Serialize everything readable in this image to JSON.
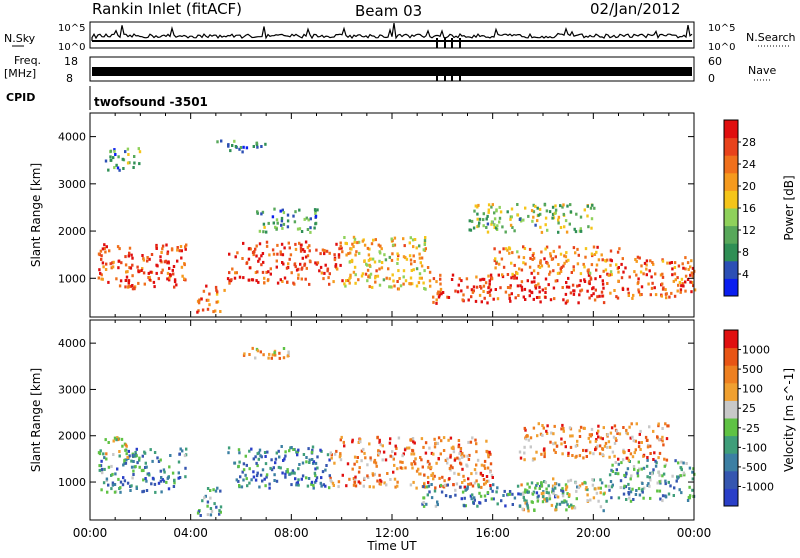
{
  "header": {
    "station": "Rankin Inlet (fitACF)",
    "beam": "Beam 03",
    "date": "02/Jan/2012"
  },
  "summary": {
    "nsky_label": "N.Sky",
    "nsearch_label": "N.Search",
    "nsky_ticks": [
      "10^5",
      "10^0"
    ],
    "nsearch_ticks": [
      "10^5",
      "10^0"
    ],
    "freq_label": "Freq.",
    "freq_unit": "[MHz]",
    "freq_ticks": [
      "18",
      "8"
    ],
    "nave_label": "Nave",
    "nave_ticks": [
      "60",
      "0"
    ],
    "cpid_label": "CPID",
    "cpid_value": "twofsound -3501"
  },
  "colors": {
    "power": [
      "#0a1ef0",
      "#2c4fb5",
      "#2f8f55",
      "#58a85a",
      "#8fd15b",
      "#f5c51a",
      "#f59a1e",
      "#f0701c",
      "#e8421b",
      "#e00e0e"
    ],
    "velocity": [
      "#2a3fc8",
      "#3556b0",
      "#3c7fa3",
      "#3f9e7a",
      "#5fc244",
      "#c8c8c8",
      "#f0a030",
      "#ee8020",
      "#e85515",
      "#e01010"
    ]
  },
  "chart_data": [
    {
      "type": "heatmap",
      "name": "power",
      "xlabel": "Time UT",
      "ylabel": "Slant Range [km]",
      "xlim": [
        0,
        24
      ],
      "ylim": [
        180,
        4500
      ],
      "xticks": [
        "00:00",
        "04:00",
        "08:00",
        "12:00",
        "16:00",
        "20:00",
        "00:00"
      ],
      "yticks": [
        1000,
        2000,
        3000,
        4000
      ],
      "colorbar": {
        "label": "Power [dB]",
        "ticks": [
          "28",
          "24",
          "20",
          "16",
          "12",
          "8",
          "4"
        ],
        "range": [
          0,
          30
        ]
      },
      "bands": [
        {
          "t": [
            0.3,
            3.8
          ],
          "r": [
            800,
            1750
          ],
          "level": 0.85
        },
        {
          "t": [
            4.2,
            5.3
          ],
          "r": [
            300,
            900
          ],
          "level": 0.8
        },
        {
          "t": [
            5.4,
            10.0
          ],
          "r": [
            900,
            1800
          ],
          "level": 0.85
        },
        {
          "t": [
            10.0,
            13.5
          ],
          "r": [
            800,
            1900
          ],
          "level": 0.6
        },
        {
          "t": [
            13.5,
            20.5
          ],
          "r": [
            500,
            1100
          ],
          "level": 0.9
        },
        {
          "t": [
            16.0,
            21.0
          ],
          "r": [
            1100,
            1700
          ],
          "level": 0.7
        },
        {
          "t": [
            20.5,
            24.0
          ],
          "r": [
            600,
            1500
          ],
          "level": 0.8
        },
        {
          "t": [
            0.5,
            2.0
          ],
          "r": [
            3300,
            3800
          ],
          "level": 0.3
        },
        {
          "t": [
            5.0,
            7.0
          ],
          "r": [
            3700,
            3950
          ],
          "level": 0.25
        },
        {
          "t": [
            6.5,
            9.0
          ],
          "r": [
            2000,
            2500
          ],
          "level": 0.3
        },
        {
          "t": [
            15.0,
            20.0
          ],
          "r": [
            2000,
            2600
          ],
          "level": 0.4
        }
      ]
    },
    {
      "type": "heatmap",
      "name": "velocity",
      "xlabel": "Time UT",
      "ylabel": "Slant Range [km]",
      "xlim": [
        0,
        24
      ],
      "ylim": [
        180,
        4500
      ],
      "xticks": [
        "00:00",
        "04:00",
        "08:00",
        "12:00",
        "16:00",
        "20:00",
        "00:00"
      ],
      "yticks": [
        1000,
        2000,
        3000,
        4000
      ],
      "colorbar": {
        "label": "Velocity [m s^-1]",
        "ticks": [
          "1000",
          "500",
          "100",
          "25",
          "-25",
          "-100",
          "-500",
          "-1000"
        ],
        "range": [
          -1000,
          1000
        ]
      },
      "bands": [
        {
          "t": [
            0.3,
            3.8
          ],
          "r": [
            800,
            1750
          ],
          "level": 0.3
        },
        {
          "t": [
            4.2,
            5.3
          ],
          "r": [
            300,
            900
          ],
          "level": 0.3
        },
        {
          "t": [
            5.4,
            9.5
          ],
          "r": [
            900,
            1800
          ],
          "level": 0.25
        },
        {
          "t": [
            9.5,
            16.0
          ],
          "r": [
            900,
            2000
          ],
          "level": 0.75
        },
        {
          "t": [
            13.0,
            19.0
          ],
          "r": [
            500,
            1000
          ],
          "level": 0.3
        },
        {
          "t": [
            17.0,
            20.5
          ],
          "r": [
            400,
            1100
          ],
          "level": 0.5
        },
        {
          "t": [
            20.5,
            24.0
          ],
          "r": [
            600,
            1500
          ],
          "level": 0.35
        },
        {
          "t": [
            0.5,
            1.5
          ],
          "r": [
            1500,
            2000
          ],
          "level": 0.5
        },
        {
          "t": [
            6.0,
            8.0
          ],
          "r": [
            3700,
            3950
          ],
          "level": 0.7
        },
        {
          "t": [
            17.0,
            23.0
          ],
          "r": [
            1500,
            2300
          ],
          "level": 0.75
        }
      ]
    }
  ]
}
